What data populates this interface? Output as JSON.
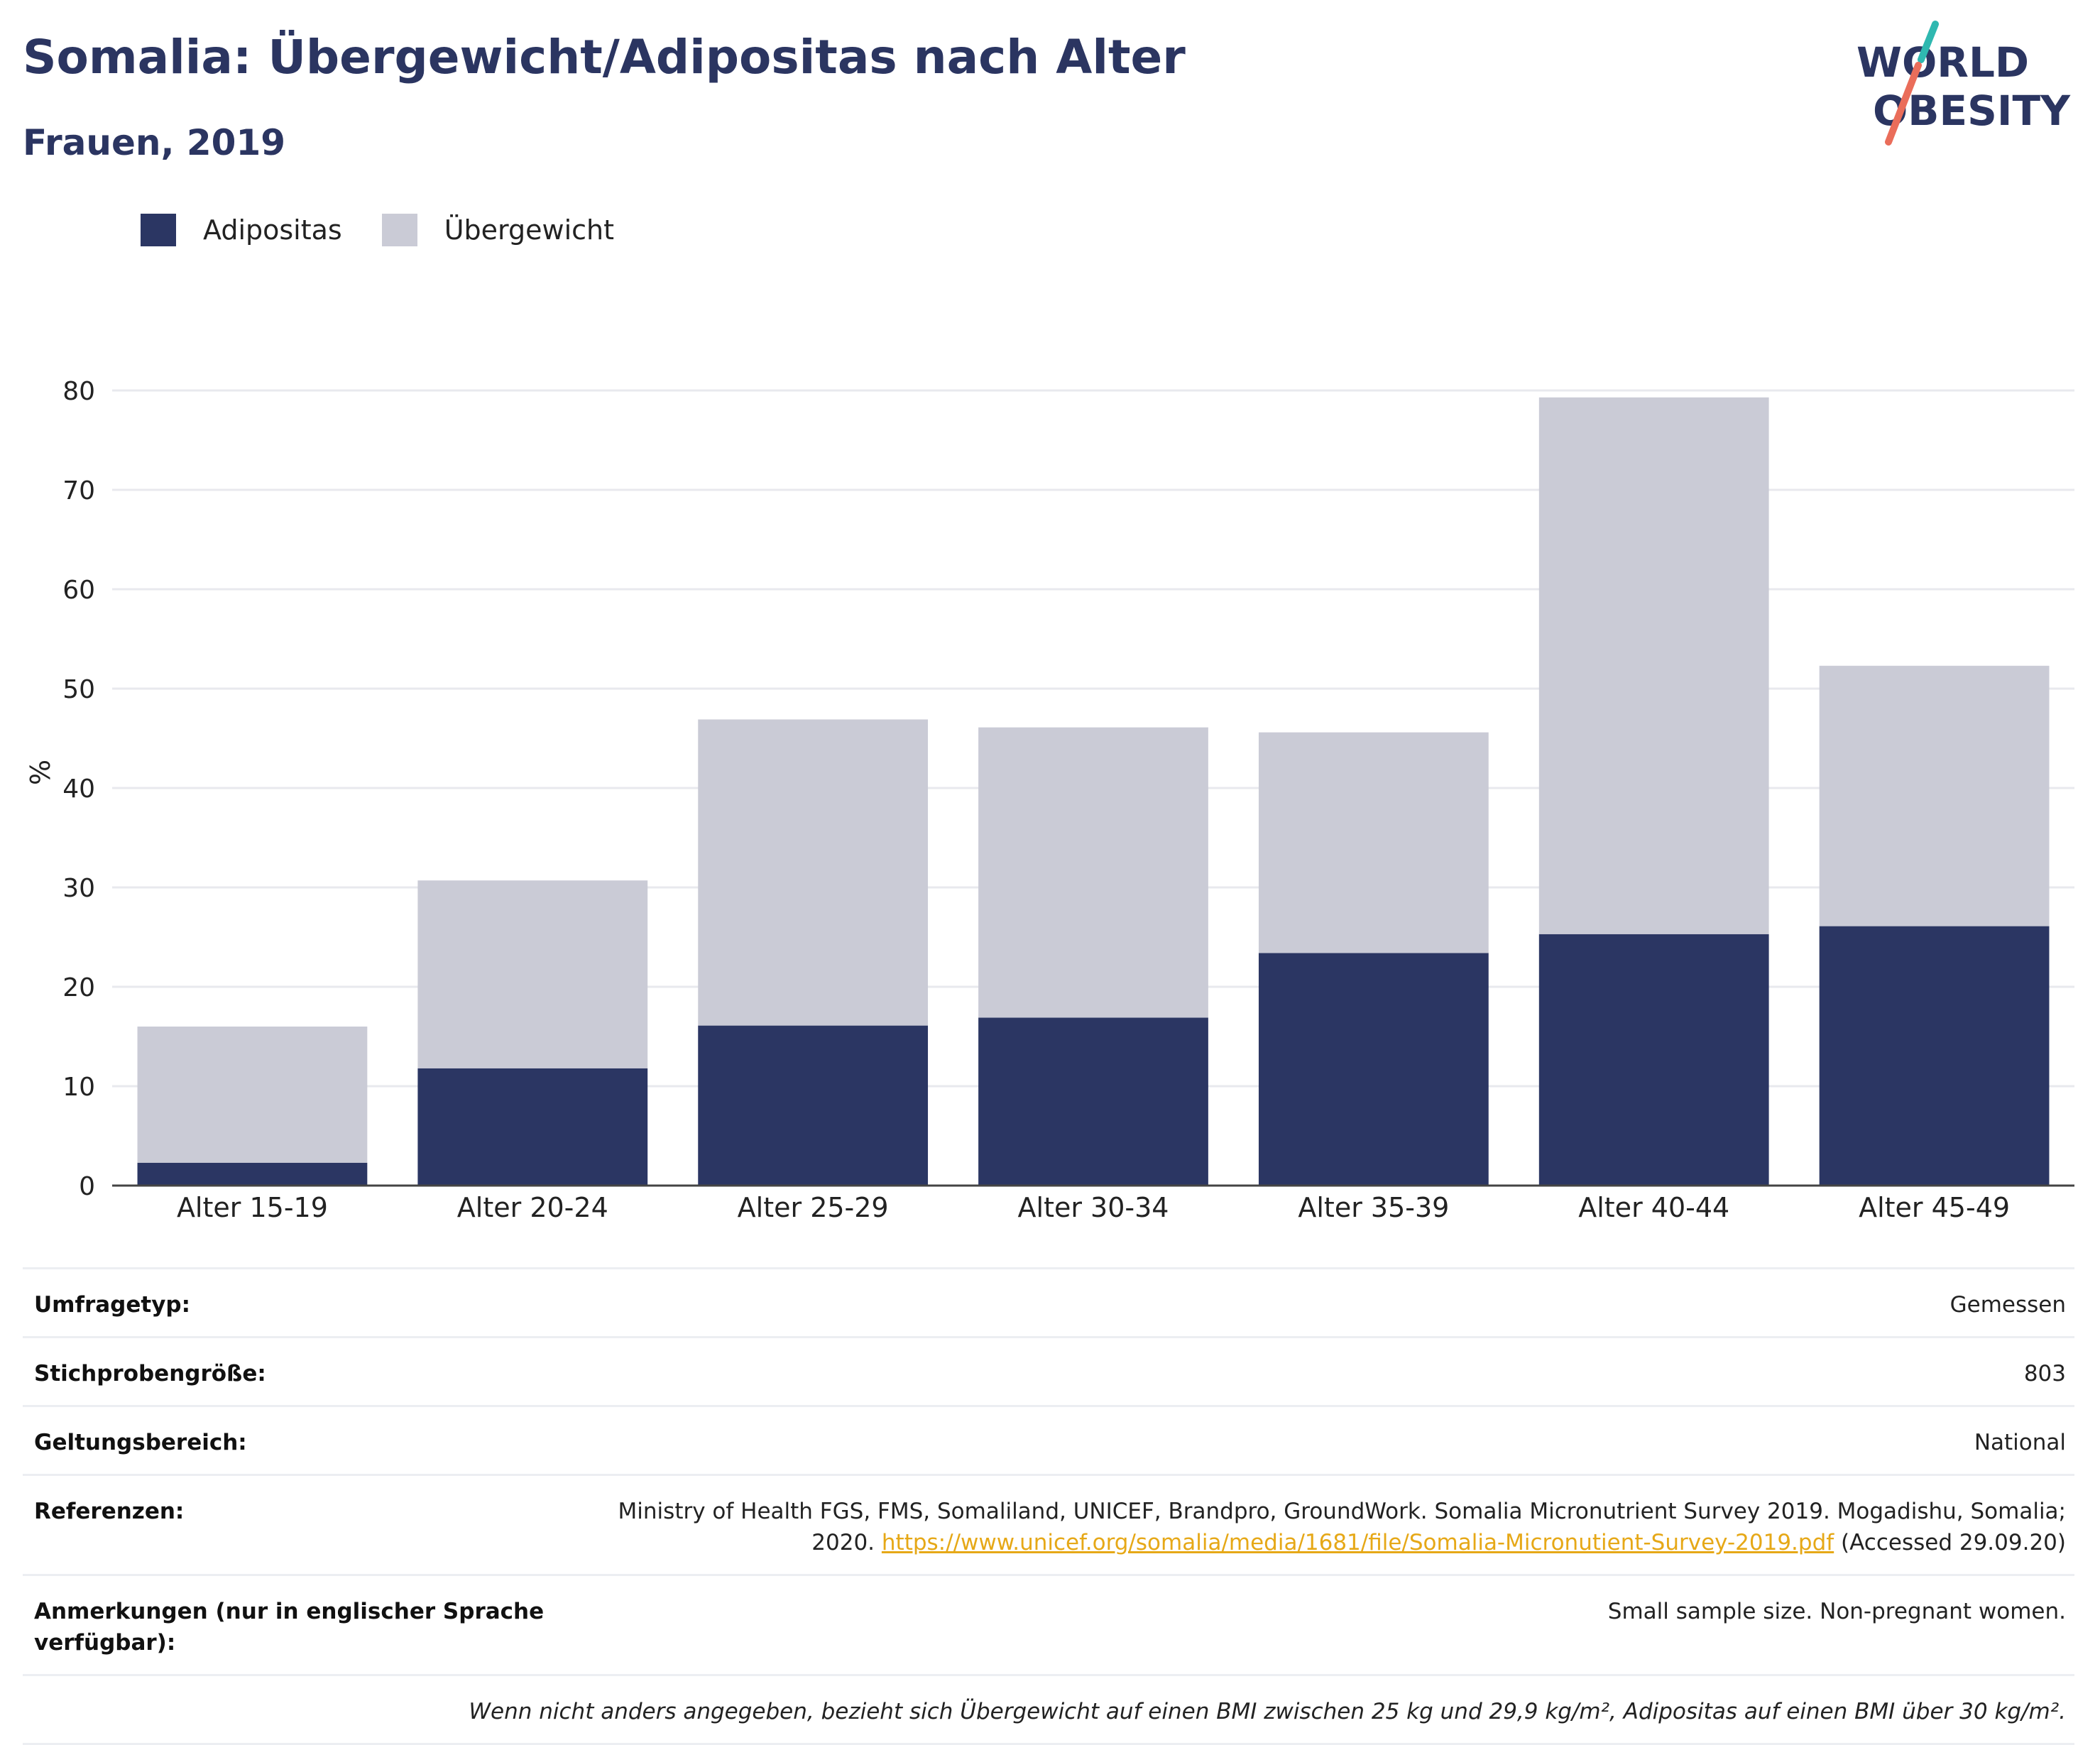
{
  "title": "Somalia: Übergewicht/Adipositas nach Alter",
  "subtitle": "Frauen, 2019",
  "logo": {
    "line1": "WORLD",
    "line2": "OBESITY"
  },
  "colors": {
    "obesity": "#2b3663",
    "overweight": "#cacbd6",
    "title": "#2b3561",
    "link": "#e6a817",
    "logo_teal": "#2fb8b0",
    "logo_coral": "#ea6d5a"
  },
  "legend": [
    {
      "label": "Adipositas",
      "color": "#2b3663"
    },
    {
      "label": "Übergewicht",
      "color": "#cacbd6"
    }
  ],
  "chart_data": {
    "type": "bar",
    "stacked": true,
    "categories": [
      "Alter 15-19",
      "Alter 20-24",
      "Alter 25-29",
      "Alter 30-34",
      "Alter 35-39",
      "Alter 40-44",
      "Alter 45-49"
    ],
    "series": [
      {
        "name": "Adipositas",
        "values": [
          2.3,
          11.8,
          16.1,
          16.9,
          23.4,
          25.3,
          26.1
        ]
      },
      {
        "name": "Übergewicht",
        "values": [
          13.7,
          18.9,
          30.8,
          29.2,
          22.2,
          54.0,
          26.2
        ]
      }
    ],
    "ylabel": "%",
    "yticks": [
      0,
      10,
      20,
      30,
      40,
      50,
      60,
      70,
      80
    ],
    "ylim": [
      0,
      80
    ],
    "grid": true,
    "legend_position": "top-left"
  },
  "info": [
    {
      "label": "Umfragetyp:",
      "value": "Gemessen"
    },
    {
      "label": "Stichprobengröße:",
      "value": "803"
    },
    {
      "label": "Geltungsbereich:",
      "value": "National"
    },
    {
      "label": "Referenzen:",
      "value_line1": "Ministry of Health FGS, FMS, Somaliland, UNICEF, Brandpro, GroundWork. Somalia Micronutrient Survey 2019. Mogadishu, Somalia;",
      "value_pre": "2020.",
      "link": "https://www.unicef.org/somalia/media/1681/file/Somalia-Micronutient-Survey-2019.pdf",
      "value_post": "(Accessed 29.09.20)"
    },
    {
      "label": "Anmerkungen (nur in englischer Sprache verfügbar):",
      "value": "Small sample size. Non-pregnant women."
    }
  ],
  "footnote": "Wenn nicht anders angegeben, bezieht sich Übergewicht auf einen BMI zwischen 25 kg und 29,9 kg/m², Adipositas auf einen BMI über 30 kg/m²."
}
